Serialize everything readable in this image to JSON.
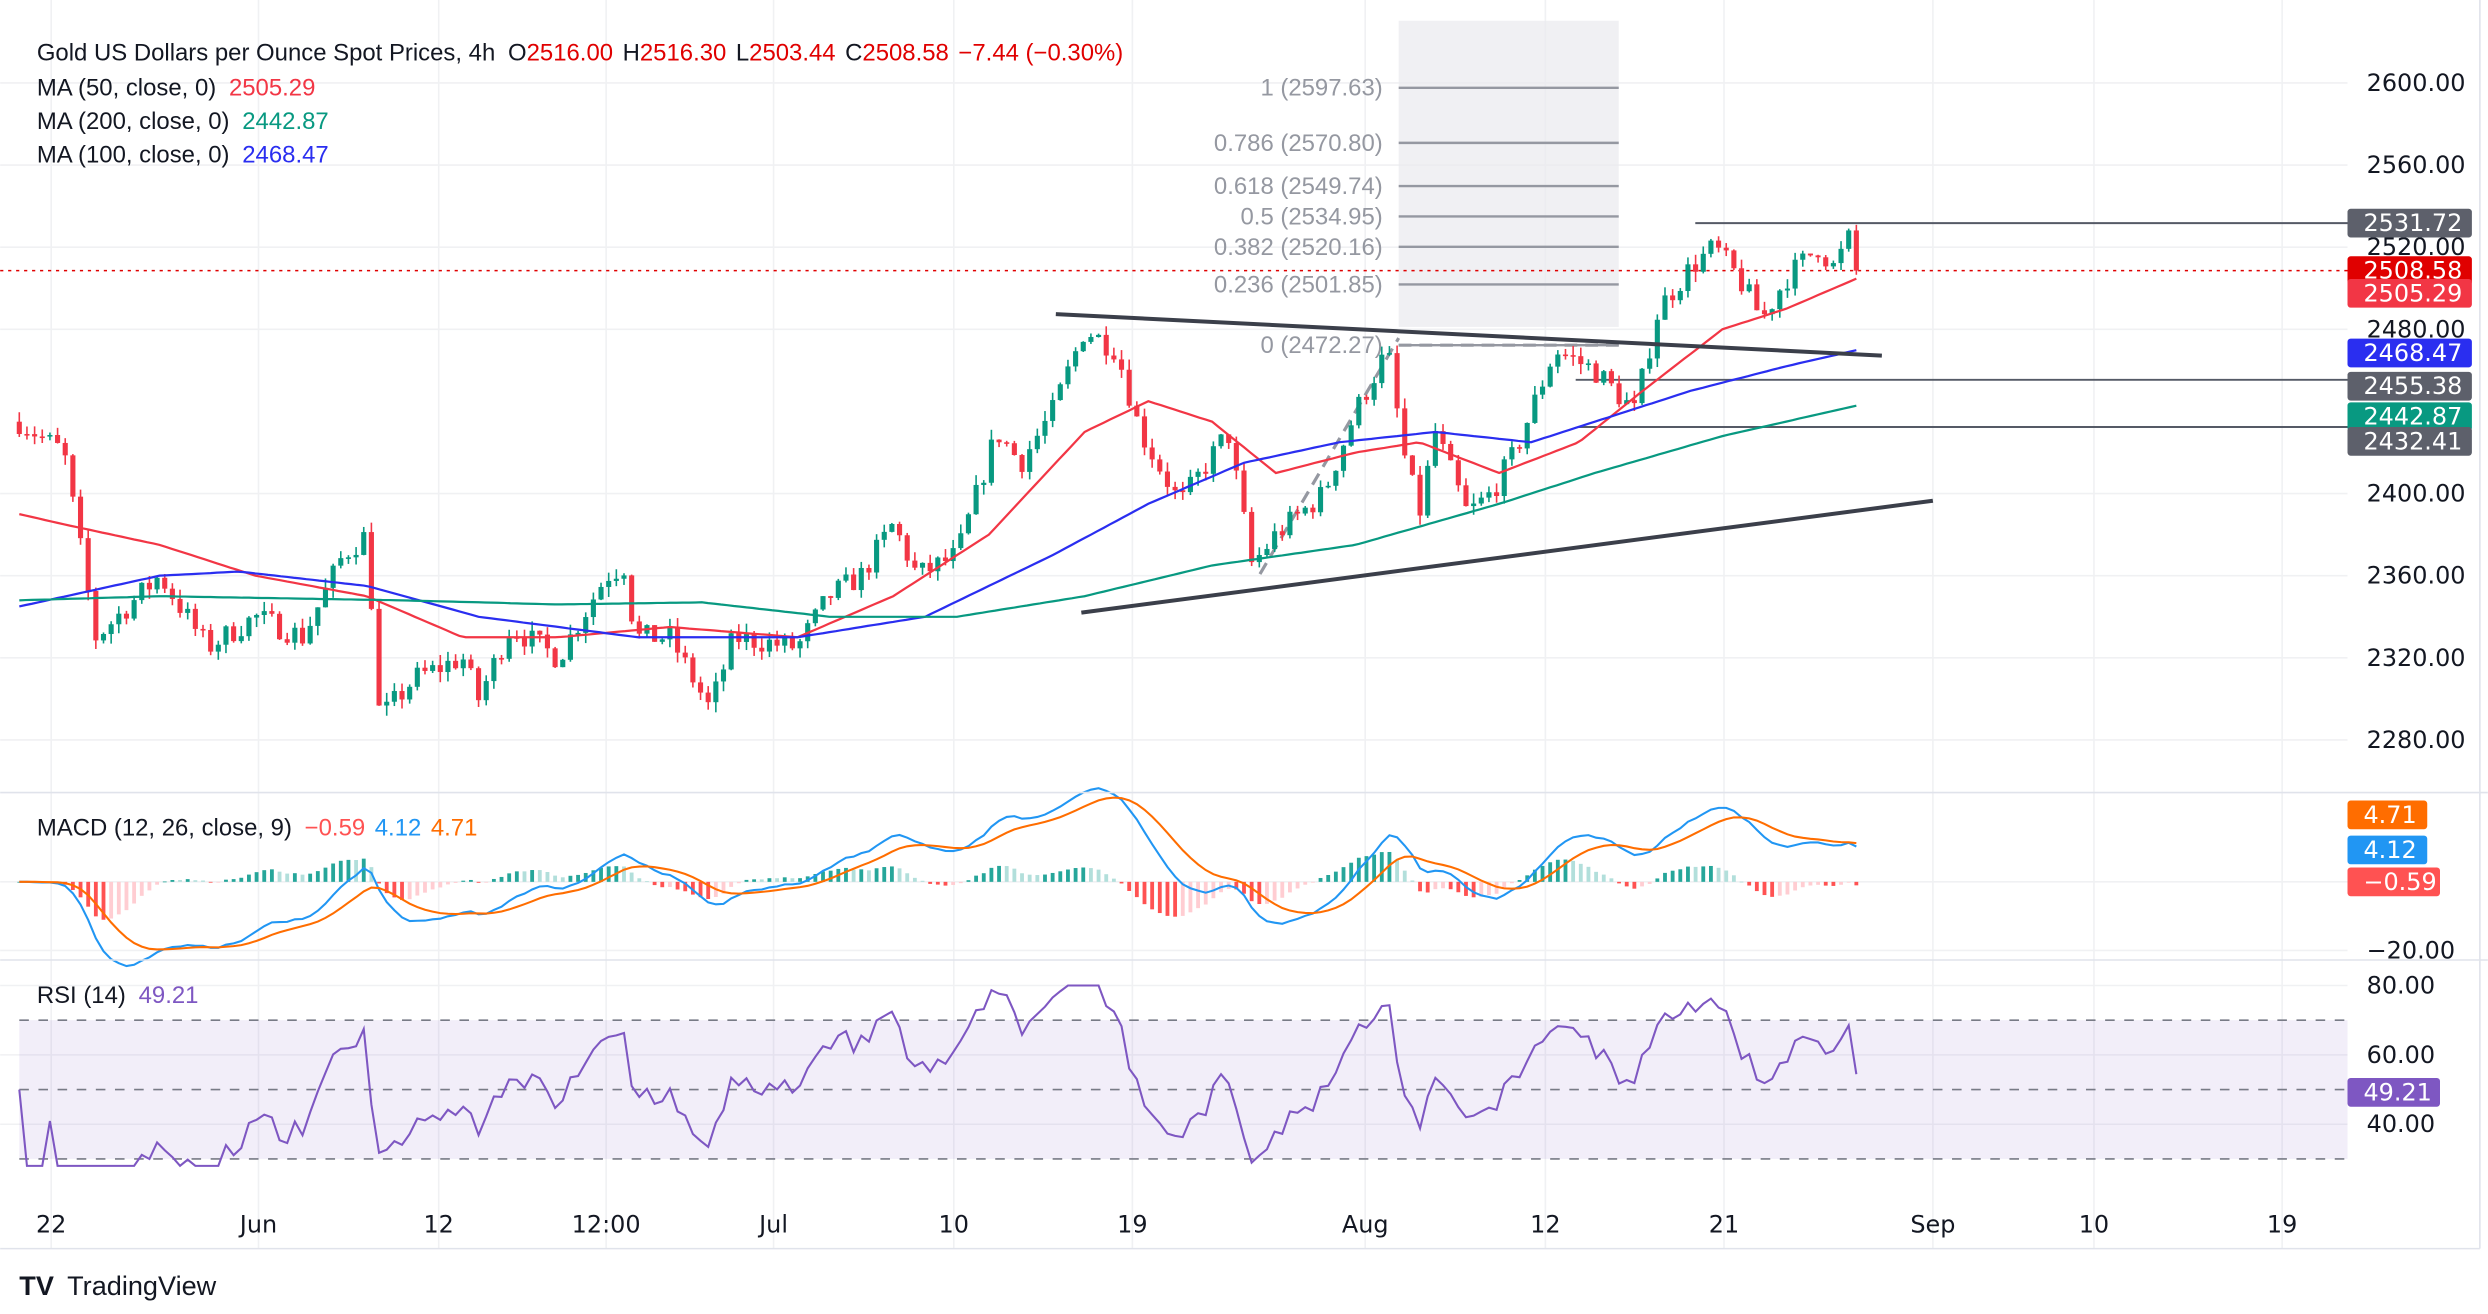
{
  "chart_data": {
    "type": "candlestick",
    "title": "Gold US Dollars per Ounce Spot Prices, 4h",
    "ohlc": {
      "open_label": "O",
      "open": "2516.00",
      "high_label": "H",
      "high": "2516.30",
      "low_label": "L",
      "low": "2503.44",
      "close_label": "C",
      "close": "2508.58",
      "change": "−7.44 (−0.30%)"
    },
    "x_ticks": [
      "22",
      "Jun",
      "12",
      "12:00",
      "Jul",
      "10",
      "19",
      "Aug",
      "12",
      "21",
      "Sep",
      "10",
      "19"
    ],
    "x_tick_pos": [
      32,
      162,
      275,
      380,
      485,
      598,
      710,
      856,
      969,
      1081,
      1212,
      1313,
      1431
    ],
    "price_ticks": [
      "2600.00",
      "2560.00",
      "2520.00",
      "2480.00",
      "2400.00",
      "2360.00",
      "2320.00",
      "2280.00"
    ],
    "price_tick_values": [
      2600,
      2560,
      2520,
      2480,
      2400,
      2360,
      2320,
      2280
    ],
    "ylim": [
      2270,
      2615
    ],
    "price_path": [
      [
        12,
        2435
      ],
      [
        40,
        2420
      ],
      [
        60,
        2330
      ],
      [
        100,
        2360
      ],
      [
        130,
        2325
      ],
      [
        160,
        2340
      ],
      [
        190,
        2330
      ],
      [
        215,
        2370
      ],
      [
        230,
        2380
      ],
      [
        238,
        2290
      ],
      [
        260,
        2310
      ],
      [
        290,
        2320
      ],
      [
        300,
        2300
      ],
      [
        320,
        2335
      ],
      [
        350,
        2320
      ],
      [
        380,
        2360
      ],
      [
        392,
        2365
      ],
      [
        398,
        2330
      ],
      [
        420,
        2330
      ],
      [
        445,
        2295
      ],
      [
        460,
        2330
      ],
      [
        500,
        2325
      ],
      [
        520,
        2350
      ],
      [
        540,
        2360
      ],
      [
        560,
        2385
      ],
      [
        575,
        2360
      ],
      [
        600,
        2370
      ],
      [
        625,
        2430
      ],
      [
        640,
        2415
      ],
      [
        660,
        2440
      ],
      [
        680,
        2480
      ],
      [
        700,
        2470
      ],
      [
        715,
        2430
      ],
      [
        740,
        2395
      ],
      [
        770,
        2430
      ],
      [
        785,
        2365
      ],
      [
        800,
        2380
      ],
      [
        830,
        2400
      ],
      [
        850,
        2440
      ],
      [
        870,
        2470
      ],
      [
        880,
        2420
      ],
      [
        890,
        2390
      ],
      [
        900,
        2430
      ],
      [
        920,
        2390
      ],
      [
        935,
        2400
      ],
      [
        950,
        2420
      ],
      [
        975,
        2470
      ],
      [
        1000,
        2460
      ],
      [
        1025,
        2440
      ],
      [
        1040,
        2490
      ],
      [
        1060,
        2510
      ],
      [
        1075,
        2520
      ],
      [
        1090,
        2505
      ],
      [
        1105,
        2485
      ],
      [
        1120,
        2505
      ],
      [
        1140,
        2520
      ],
      [
        1150,
        2510
      ],
      [
        1160,
        2525
      ],
      [
        1165,
        2508
      ]
    ],
    "ma50": {
      "label": "MA (50, close, 0)",
      "value": "2505.29",
      "color": "#f23645",
      "path": [
        [
          12,
          2390
        ],
        [
          40,
          2385
        ],
        [
          100,
          2375
        ],
        [
          160,
          2360
        ],
        [
          230,
          2350
        ],
        [
          290,
          2330
        ],
        [
          350,
          2330
        ],
        [
          420,
          2335
        ],
        [
          500,
          2330
        ],
        [
          560,
          2350
        ],
        [
          620,
          2380
        ],
        [
          680,
          2430
        ],
        [
          720,
          2445
        ],
        [
          760,
          2435
        ],
        [
          800,
          2410
        ],
        [
          850,
          2420
        ],
        [
          890,
          2425
        ],
        [
          940,
          2410
        ],
        [
          990,
          2425
        ],
        [
          1030,
          2450
        ],
        [
          1080,
          2480
        ],
        [
          1120,
          2490
        ],
        [
          1165,
          2505
        ]
      ]
    },
    "ma200": {
      "label": "MA (200, close, 0)",
      "value": "2442.87",
      "color": "#089981",
      "path": [
        [
          12,
          2348
        ],
        [
          100,
          2350
        ],
        [
          250,
          2348
        ],
        [
          350,
          2346
        ],
        [
          440,
          2347
        ],
        [
          520,
          2340
        ],
        [
          600,
          2340
        ],
        [
          680,
          2350
        ],
        [
          760,
          2365
        ],
        [
          850,
          2375
        ],
        [
          940,
          2395
        ],
        [
          1000,
          2410
        ],
        [
          1080,
          2428
        ],
        [
          1165,
          2443
        ]
      ]
    },
    "ma100": {
      "label": "MA (100, close, 0)",
      "value": "2468.47",
      "color": "#2a2ef0",
      "path": [
        [
          12,
          2345
        ],
        [
          100,
          2360
        ],
        [
          150,
          2362
        ],
        [
          230,
          2355
        ],
        [
          300,
          2340
        ],
        [
          400,
          2330
        ],
        [
          500,
          2330
        ],
        [
          580,
          2340
        ],
        [
          660,
          2370
        ],
        [
          720,
          2395
        ],
        [
          780,
          2415
        ],
        [
          840,
          2425
        ],
        [
          900,
          2430
        ],
        [
          960,
          2425
        ],
        [
          1000,
          2435
        ],
        [
          1060,
          2450
        ],
        [
          1120,
          2462
        ],
        [
          1165,
          2470
        ]
      ]
    },
    "trendlines": [
      {
        "from": [
          662,
          2487.4
        ],
        "to": [
          1180,
          2467.2
        ]
      },
      {
        "from": [
          678,
          2342
        ],
        "to": [
          1212,
          2396.5
        ]
      }
    ],
    "horizontal_levels": [
      {
        "value": 2531.72,
        "label": "2531.72",
        "from": 1063
      },
      {
        "value": 2455.38,
        "label": "2455.38",
        "from": 988
      },
      {
        "value": 2432.41,
        "label": "2432.41",
        "from": 990
      }
    ],
    "last_price": {
      "value": 2508.58,
      "label": "2508.58",
      "color": "#e00000"
    },
    "fib": {
      "levels": [
        {
          "ratio": "1",
          "value": 2597.63,
          "label": "1 (2597.63)"
        },
        {
          "ratio": "0.786",
          "value": 2570.8,
          "label": "0.786 (2570.80)"
        },
        {
          "ratio": "0.618",
          "value": 2549.74,
          "label": "0.618 (2549.74)"
        },
        {
          "ratio": "0.5",
          "value": 2534.95,
          "label": "0.5 (2534.95)"
        },
        {
          "ratio": "0.382",
          "value": 2520.16,
          "label": "0.382 (2520.16)"
        },
        {
          "ratio": "0.236",
          "value": 2501.85,
          "label": "0.236 (2501.85)"
        },
        {
          "ratio": "0",
          "value": 2472.27,
          "label": "0 (2472.27)"
        }
      ]
    },
    "macd": {
      "label": "MACD (12, 26, close, 9)",
      "hist": "−0.59",
      "macd": "4.12",
      "signal": "4.71",
      "tick": "−20.00",
      "colors": {
        "macd": "#2196f3",
        "signal": "#ff6d00",
        "hist_neg": "#ff5252"
      }
    },
    "rsi": {
      "label": "RSI (14)",
      "value": "49.21",
      "ticks": [
        "80.00",
        "60.00",
        "40.00"
      ],
      "tick_values": [
        80,
        60,
        40
      ],
      "upper": 70,
      "middle": 50,
      "lower": 30,
      "color": "#7e57c2"
    }
  },
  "branding": {
    "logo": "TradingView"
  }
}
